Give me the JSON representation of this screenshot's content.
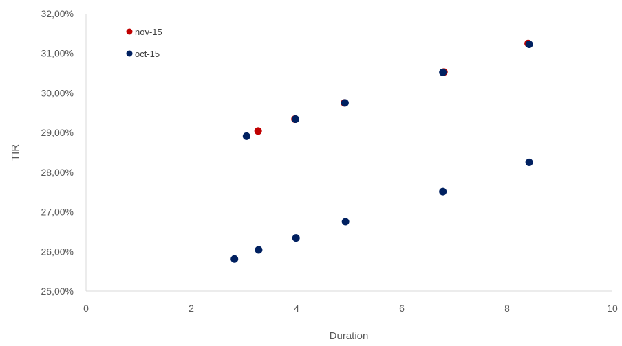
{
  "chart_data": {
    "type": "scatter",
    "xlabel": "Duration",
    "ylabel": "TIR",
    "xlim": [
      0,
      10
    ],
    "ylim": [
      25,
      32
    ],
    "x_ticks": [
      "0",
      "2",
      "4",
      "6",
      "8",
      "10"
    ],
    "y_ticks": [
      "25,00%",
      "26,00%",
      "27,00%",
      "28,00%",
      "29,00%",
      "30,00%",
      "31,00%",
      "32,00%"
    ],
    "grid": false,
    "legend_position": "top-left",
    "series": [
      {
        "name": "nov-15",
        "color": "#C00000",
        "points": [
          {
            "x": 3.27,
            "y": 29.04
          },
          {
            "x": 3.97,
            "y": 29.34
          },
          {
            "x": 4.91,
            "y": 29.75
          },
          {
            "x": 6.8,
            "y": 30.53
          },
          {
            "x": 8.4,
            "y": 31.25
          }
        ]
      },
      {
        "name": "oct-15",
        "color": "#002060",
        "points": [
          {
            "x": 3.05,
            "y": 28.91
          },
          {
            "x": 3.98,
            "y": 29.34
          },
          {
            "x": 4.92,
            "y": 29.75
          },
          {
            "x": 6.78,
            "y": 30.52
          },
          {
            "x": 8.42,
            "y": 31.23
          },
          {
            "x": 2.82,
            "y": 25.81
          },
          {
            "x": 3.28,
            "y": 26.04
          },
          {
            "x": 3.99,
            "y": 26.34
          },
          {
            "x": 4.93,
            "y": 26.75
          },
          {
            "x": 6.78,
            "y": 27.51
          },
          {
            "x": 8.42,
            "y": 28.25
          }
        ]
      }
    ]
  }
}
